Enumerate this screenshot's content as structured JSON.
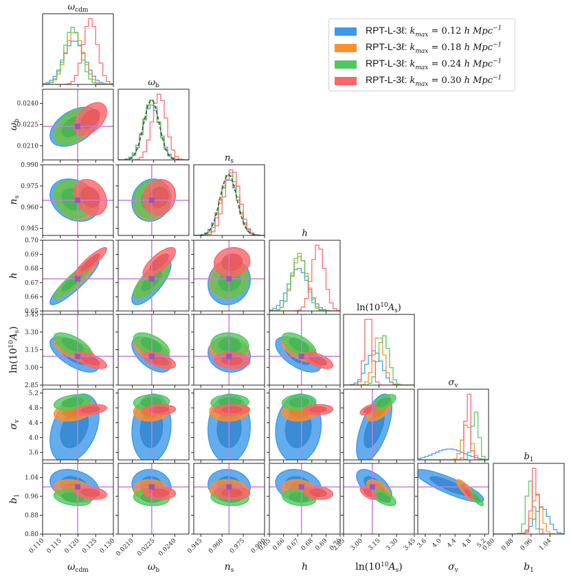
{
  "chart_data": {
    "type": "corner",
    "title": "",
    "parameters": [
      {
        "key": "omega_cdm",
        "label": "ω_cdm",
        "range": [
          0.11,
          0.13
        ],
        "ticks": [
          0.11,
          0.115,
          0.12,
          0.125,
          0.13
        ],
        "tick_labels": [
          "0.110",
          "0.115",
          "0.120",
          "0.125",
          "0.130"
        ],
        "fiducial": 0.1199
      },
      {
        "key": "omega_b",
        "label": "ω_b",
        "range": [
          0.02,
          0.025
        ],
        "ticks": [
          0.021,
          0.0225,
          0.024
        ],
        "tick_labels": [
          "0.0210",
          "0.0225",
          "0.0240"
        ],
        "fiducial": 0.02237
      },
      {
        "key": "n_s",
        "label": "n_s",
        "range": [
          0.94,
          0.99
        ],
        "ticks": [
          0.945,
          0.96,
          0.975,
          0.99
        ],
        "tick_labels": [
          "0.945",
          "0.960",
          "0.975",
          "0.990"
        ],
        "fiducial": 0.9649
      },
      {
        "key": "h",
        "label": "h",
        "range": [
          0.65,
          0.7
        ],
        "ticks": [
          0.65,
          0.66,
          0.67,
          0.68,
          0.69,
          0.7
        ],
        "tick_labels": [
          "0.65",
          "0.66",
          "0.67",
          "0.68",
          "0.69",
          "0.70"
        ],
        "fiducial": 0.6727
      },
      {
        "key": "ln10As",
        "label": "ln(10¹⁰A_s)",
        "range": [
          2.85,
          3.45
        ],
        "ticks": [
          2.85,
          3.0,
          3.15,
          3.3,
          3.45
        ],
        "tick_labels": [
          "2.85",
          "3.00",
          "3.15",
          "3.30",
          "3.45"
        ],
        "fiducial": 3.094
      },
      {
        "key": "sigma_v",
        "label": "σ_v",
        "range": [
          3.4,
          5.3
        ],
        "ticks": [
          3.6,
          4.0,
          4.4,
          4.8,
          5.2
        ],
        "tick_labels": [
          "3.6",
          "4.0",
          "4.4",
          "4.8",
          "5.2"
        ],
        "fiducial": null
      },
      {
        "key": "b1",
        "label": "b₁",
        "range": [
          0.8,
          1.1
        ],
        "ticks": [
          0.8,
          0.88,
          0.96,
          1.04
        ],
        "tick_labels": [
          "0.80",
          "0.88",
          "0.96",
          "1.04"
        ],
        "fiducial": 1.0
      }
    ],
    "series": [
      {
        "name": "RPT-L-3ℓ: k_max = 0.12 h Mpc⁻¹",
        "kmax": 0.12,
        "color": "#3c98ea",
        "mean": {
          "omega_cdm": 0.119,
          "omega_b": 0.02235,
          "n_s": 0.965,
          "h": 0.6705,
          "ln10As": 3.11,
          "sigma_v": 4.25,
          "b1": 1.005
        },
        "sigma": {
          "omega_cdm": 0.003,
          "omega_b": 0.0006,
          "n_s": 0.0065,
          "h": 0.007,
          "ln10As": 0.065,
          "sigma_v": 0.4,
          "b1": 0.03
        }
      },
      {
        "name": "RPT-L-3ℓ: k_max = 0.18 h Mpc⁻¹",
        "kmax": 0.18,
        "color": "#ff8f2a",
        "mean": {
          "omega_cdm": 0.119,
          "omega_b": 0.02235,
          "n_s": 0.965,
          "h": 0.6715,
          "ln10As": 3.15,
          "sigma_v": 4.72,
          "b1": 0.985
        },
        "sigma": {
          "omega_cdm": 0.0025,
          "omega_b": 0.00055,
          "n_s": 0.006,
          "h": 0.0055,
          "ln10As": 0.045,
          "sigma_v": 0.12,
          "b1": 0.02
        }
      },
      {
        "name": "RPT-L-3ℓ: k_max = 0.24 h Mpc⁻¹",
        "kmax": 0.24,
        "color": "#4fc95f",
        "mean": {
          "omega_cdm": 0.1185,
          "omega_b": 0.02235,
          "n_s": 0.9655,
          "h": 0.671,
          "ln10As": 3.19,
          "sigma_v": 4.95,
          "b1": 0.955
        },
        "sigma": {
          "omega_cdm": 0.0023,
          "omega_b": 0.00055,
          "n_s": 0.0058,
          "h": 0.0052,
          "ln10As": 0.045,
          "sigma_v": 0.09,
          "b1": 0.015
        }
      },
      {
        "name": "RPT-L-3ℓ: k_max = 0.30 h Mpc⁻¹",
        "kmax": 0.3,
        "color": "#ff6468",
        "mean": {
          "omega_cdm": 0.1235,
          "omega_b": 0.0229,
          "n_s": 0.967,
          "h": 0.6845,
          "ln10As": 3.06,
          "sigma_v": 4.75,
          "b1": 0.975
        },
        "sigma": {
          "omega_cdm": 0.002,
          "omega_b": 0.0005,
          "n_s": 0.0055,
          "h": 0.0045,
          "ln10As": 0.03,
          "sigma_v": 0.06,
          "b1": 0.012
        }
      }
    ],
    "gaussian_prior": {
      "omega_b": {
        "mean": 0.02235,
        "sigma": 0.00055
      },
      "n_s": {
        "mean": 0.9645,
        "sigma": 0.006
      },
      "style": "dashed",
      "color": "#444444"
    },
    "correlations": {
      "omega_b|omega_cdm": 0.45,
      "n_s|omega_cdm": -0.25,
      "n_s|omega_b": 0.1,
      "h|omega_cdm": 0.9,
      "h|omega_b": 0.75,
      "h|n_s": 0.1,
      "ln10As|omega_cdm": -0.65,
      "ln10As|omega_b": -0.55,
      "ln10As|n_s": -0.1,
      "ln10As|h": -0.6,
      "sigma_v|omega_cdm": 0.35,
      "sigma_v|omega_b": 0.1,
      "sigma_v|n_s": 0.05,
      "sigma_v|h": 0.1,
      "sigma_v|ln10As": 0.6,
      "b1|omega_cdm": -0.3,
      "b1|omega_b": -0.1,
      "b1|n_s": -0.1,
      "b1|h": -0.2,
      "b1|ln10As": -0.6,
      "b1|sigma_v": -0.85
    },
    "fiducial_color": "#c67ddb",
    "legend_position": "top-right",
    "grid": false
  },
  "legend": {
    "items": [
      {
        "prefix": "RPT-L-3ℓ: ",
        "math": "k",
        "sub": "max",
        "eq": " = 0.12 ",
        "unit": "h Mpc",
        "sup": "−1",
        "color": "#3c98ea"
      },
      {
        "prefix": "RPT-L-3ℓ: ",
        "math": "k",
        "sub": "max",
        "eq": " = 0.18 ",
        "unit": "h Mpc",
        "sup": "−1",
        "color": "#ff8f2a"
      },
      {
        "prefix": "RPT-L-3ℓ: ",
        "math": "k",
        "sub": "max",
        "eq": " = 0.24 ",
        "unit": "h Mpc",
        "sup": "−1",
        "color": "#4fc95f"
      },
      {
        "prefix": "RPT-L-3ℓ: ",
        "math": "k",
        "sub": "max",
        "eq": " = 0.30 ",
        "unit": "h Mpc",
        "sup": "−1",
        "color": "#ff6468"
      }
    ]
  },
  "titles": {
    "omega_cdm": "ω",
    "omega_cdm_sub": "cdm",
    "omega_b": "ω",
    "omega_b_sub": "b",
    "n_s": "n",
    "n_s_sub": "s",
    "h": "h",
    "ln10As": "ln(10",
    "ln10As_sup": "10",
    "ln10As_tail": "A",
    "ln10As_sub": "s",
    "sigma_v": "σ",
    "sigma_v_sub": "v",
    "b1": "b",
    "b1_sub": "1"
  }
}
